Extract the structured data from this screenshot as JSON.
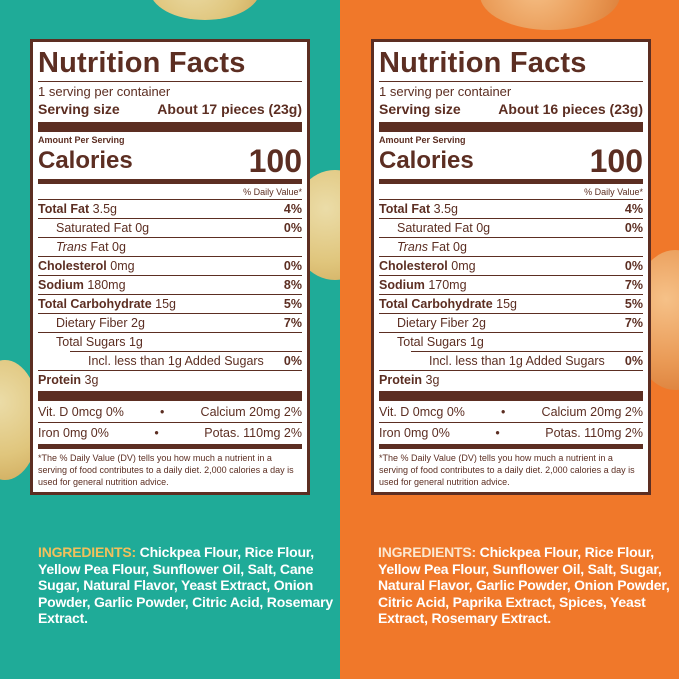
{
  "panels": [
    {
      "title": "Nutrition Facts",
      "servings_per_container": "1 serving per container",
      "serving_size_label": "Serving size",
      "serving_size_value": "About 17 pieces (23g)",
      "amount_per_serving": "Amount Per Serving",
      "calories_label": "Calories",
      "calories_value": "100",
      "dv_header": "% Daily Value*",
      "total_fat_label": "Total Fat",
      "total_fat_amount": "3.5g",
      "total_fat_dv": "4%",
      "sat_fat_label": "Saturated Fat 0g",
      "sat_fat_dv": "0%",
      "trans_fat_label": "Trans",
      "trans_fat_amount": "Fat 0g",
      "cholesterol_label": "Cholesterol",
      "cholesterol_amount": "0mg",
      "cholesterol_dv": "0%",
      "sodium_label": "Sodium",
      "sodium_amount": "180mg",
      "sodium_dv": "8%",
      "carb_label": "Total Carbohydrate",
      "carb_amount": "15g",
      "carb_dv": "5%",
      "fiber_label": "Dietary Fiber 2g",
      "fiber_dv": "7%",
      "sugars_label": "Total Sugars 1g",
      "added_sugars_label": "Incl. less than 1g Added Sugars",
      "added_sugars_dv": "0%",
      "protein_label": "Protein",
      "protein_amount": "3g",
      "vitd": "Vit. D 0mcg 0%",
      "calcium": "Calcium 20mg 2%",
      "iron": "Iron 0mg 0%",
      "potassium": "Potas. 110mg 2%",
      "dot": "•",
      "footnote": "*The % Daily Value (DV) tells you how much a nutrient in a serving of food contributes to a daily diet. 2,000 calories a day is used for general nutrition advice.",
      "ingredients_label": "INGREDIENTS:",
      "ingredients_text": "Chickpea Flour, Rice Flour, Yellow Pea Flour, Sunflower Oil, Salt, Cane Sugar, Natural Flavor, Yeast Extract, Onion Powder, Garlic Powder, Citric Acid, Rosemary Extract."
    },
    {
      "title": "Nutrition Facts",
      "servings_per_container": "1 serving per container",
      "serving_size_label": "Serving size",
      "serving_size_value": "About 16 pieces (23g)",
      "amount_per_serving": "Amount Per Serving",
      "calories_label": "Calories",
      "calories_value": "100",
      "dv_header": "% Daily Value*",
      "total_fat_label": "Total Fat",
      "total_fat_amount": "3.5g",
      "total_fat_dv": "4%",
      "sat_fat_label": "Saturated Fat 0g",
      "sat_fat_dv": "0%",
      "trans_fat_label": "Trans",
      "trans_fat_amount": "Fat 0g",
      "cholesterol_label": "Cholesterol",
      "cholesterol_amount": "0mg",
      "cholesterol_dv": "0%",
      "sodium_label": "Sodium",
      "sodium_amount": "170mg",
      "sodium_dv": "7%",
      "carb_label": "Total Carbohydrate",
      "carb_amount": "15g",
      "carb_dv": "5%",
      "fiber_label": "Dietary Fiber 2g",
      "fiber_dv": "7%",
      "sugars_label": "Total Sugars 1g",
      "added_sugars_label": "Incl. less than 1g Added Sugars",
      "added_sugars_dv": "0%",
      "protein_label": "Protein",
      "protein_amount": "3g",
      "vitd": "Vit. D 0mcg 0%",
      "calcium": "Calcium 20mg 2%",
      "iron": "Iron 0mg 0%",
      "potassium": "Potas. 110mg 2%",
      "dot": "•",
      "footnote": "*The % Daily Value (DV) tells you how much a nutrient in a serving of food contributes to a daily diet. 2,000 calories a day is used for general nutrition advice.",
      "ingredients_label": "INGREDIENTS:",
      "ingredients_text": "Chickpea Flour, Rice Flour, Yellow Pea Flour, Sunflower Oil, Salt, Sugar, Natural Flavor, Garlic Powder, Onion Powder, Citric Acid, Paprika Extract, Spices, Yeast Extract, Rosemary Extract."
    }
  ],
  "colors": {
    "left_bg": "#1fab98",
    "right_bg": "#f0782a",
    "label_brown": "#5c2e22"
  }
}
